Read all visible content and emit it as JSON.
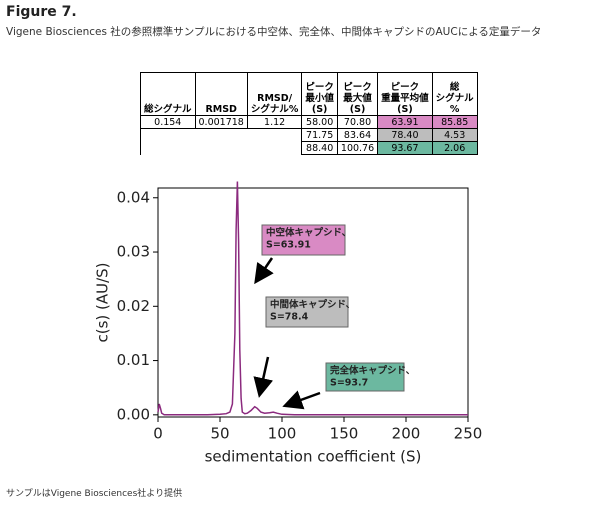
{
  "figure_label": "Figure 7.",
  "subtitle": "Vigene Biosciences 社の参照標準サンプルにおける中空体、完全体、中間体キャプシドのAUCによる定量データ",
  "table": {
    "headers": [
      [
        "総シグナル"
      ],
      [
        "RMSD"
      ],
      [
        "RMSD/",
        "シグナル%"
      ],
      [
        "ピーク",
        "最小値",
        "(S)"
      ],
      [
        "ピーク",
        "最大値",
        "(S)"
      ],
      [
        "ピーク",
        "重量平均値",
        "(S)"
      ],
      [
        "総",
        "シグナル",
        "%"
      ]
    ],
    "rows": [
      [
        "0.154",
        "0.001718",
        "1.12",
        "58.00",
        "70.80",
        "63.91",
        "85.85"
      ],
      [
        "71.75",
        "83.64",
        "78.40",
        "4.53"
      ],
      [
        "88.40",
        "100.76",
        "93.67",
        "2.06"
      ]
    ],
    "highlight_colors": [
      "#d98ac4",
      "#bdbdbd",
      "#6cb8a0"
    ]
  },
  "chart_data": {
    "type": "line",
    "xlabel": "sedimentation coefficient (S)",
    "ylabel": "c(s) (AU/S)",
    "x": [
      0,
      1,
      2,
      3,
      5,
      10,
      20,
      30,
      40,
      50,
      55,
      58,
      60,
      62,
      63,
      64,
      65,
      66,
      67,
      68,
      70,
      72,
      75,
      78,
      80,
      83,
      86,
      90,
      93,
      96,
      100,
      110,
      130,
      150,
      200,
      250
    ],
    "series": [
      {
        "color": "#8b2a7e",
        "values": [
          0.0005,
          0.002,
          0.0012,
          0.0003,
          0,
          0,
          0,
          0,
          0,
          0.0001,
          0.0002,
          0.0005,
          0.002,
          0.015,
          0.034,
          0.043,
          0.032,
          0.012,
          0.003,
          0.0005,
          0.0002,
          0.0003,
          0.0008,
          0.0015,
          0.0012,
          0.0005,
          0.0003,
          0.0004,
          0.0005,
          0.0003,
          0.0001,
          0,
          0,
          0,
          0,
          0
        ]
      }
    ],
    "xlim": [
      0,
      250
    ],
    "xticks": [
      0,
      50,
      100,
      150,
      200,
      250
    ],
    "ylim": [
      -0.0004,
      0.0418
    ],
    "yticks": [
      {
        "value": 0,
        "label": "0.00"
      },
      0.01,
      {
        "value": 0.02,
        "label": "0.02"
      },
      0.03,
      0.04
    ],
    "annotations": [
      {
        "lines": [
          "中空体キャプシド、",
          "S=63.91"
        ],
        "color": "#d98ac4"
      },
      {
        "lines": [
          "中間体キャプシド、",
          "S=78.4"
        ],
        "color": "#bdbdbd"
      },
      {
        "lines": [
          "完全体キャプシド、",
          "S=93.7"
        ],
        "color": "#6cb8a0"
      }
    ]
  },
  "footnote": "サンプルはVigene Biosciences社より提供"
}
